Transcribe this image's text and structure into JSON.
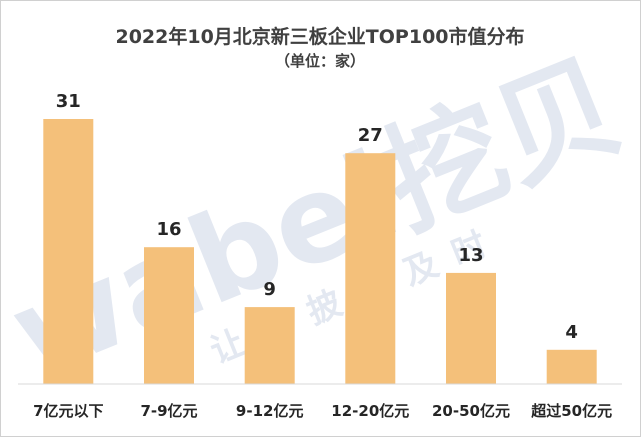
{
  "chart_data": {
    "type": "bar",
    "title": "2022年10月北京新三板企业TOP100市值分布",
    "subtitle": "（单位：家）",
    "categories": [
      "7亿元以下",
      "7-9亿元",
      "9-12亿元",
      "12-20亿元",
      "20-50亿元",
      "超过50亿元"
    ],
    "values": [
      31,
      16,
      9,
      27,
      13,
      4
    ],
    "ylim": [
      0,
      31
    ],
    "grid": false,
    "legend": "none",
    "bar_color": "#f4c07a",
    "axis_color": "#d9d9d9"
  },
  "watermark": {
    "logo": "wabei挖贝",
    "tagline": "让信披更及时",
    "color": "#e3e8f1"
  }
}
